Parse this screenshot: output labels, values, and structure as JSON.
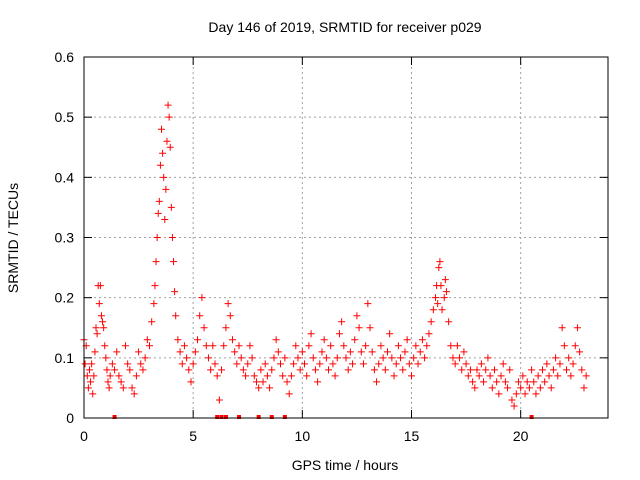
{
  "chart_data": {
    "type": "scatter",
    "title": "Day 146 of 2019, SRMTID for receiver p029",
    "xlabel": "GPS time / hours",
    "ylabel": "SRMTID / TECUs",
    "xlim": [
      0,
      24
    ],
    "ylim": [
      0,
      0.6
    ],
    "x_ticks": [
      0,
      5,
      10,
      15,
      20
    ],
    "x_tick_labels": [
      "0",
      "5",
      "10",
      "15",
      "20"
    ],
    "y_ticks": [
      0,
      0.1,
      0.2,
      0.3,
      0.4,
      0.5,
      0.6
    ],
    "y_tick_labels": [
      "0",
      "0.1",
      "0.2",
      "0.3",
      "0.4",
      "0.5",
      "0.6"
    ],
    "grid": true,
    "marker": "plus",
    "color": "#ff0000",
    "series": [
      {
        "name": "SRMTID",
        "points": [
          [
            0.0,
            0.13
          ],
          [
            0.05,
            0.09
          ],
          [
            0.1,
            0.12
          ],
          [
            0.15,
            0.07
          ],
          [
            0.2,
            0.05
          ],
          [
            0.25,
            0.08
          ],
          [
            0.3,
            0.06
          ],
          [
            0.35,
            0.09
          ],
          [
            0.4,
            0.04
          ],
          [
            0.45,
            0.07
          ],
          [
            0.5,
            0.11
          ],
          [
            0.55,
            0.15
          ],
          [
            0.6,
            0.14
          ],
          [
            0.65,
            0.22
          ],
          [
            0.7,
            0.19
          ],
          [
            0.75,
            0.22
          ],
          [
            0.8,
            0.17
          ],
          [
            0.85,
            0.16
          ],
          [
            0.9,
            0.15
          ],
          [
            0.95,
            0.12
          ],
          [
            1.0,
            0.1
          ],
          [
            1.05,
            0.08
          ],
          [
            1.1,
            0.06
          ],
          [
            1.15,
            0.05
          ],
          [
            1.2,
            0.07
          ],
          [
            1.3,
            0.09
          ],
          [
            1.4,
            0.08
          ],
          [
            1.5,
            0.11
          ],
          [
            1.6,
            0.07
          ],
          [
            1.7,
            0.06
          ],
          [
            1.8,
            0.05
          ],
          [
            1.9,
            0.12
          ],
          [
            2.0,
            0.09
          ],
          [
            2.1,
            0.08
          ],
          [
            2.2,
            0.05
          ],
          [
            2.3,
            0.04
          ],
          [
            2.4,
            0.07
          ],
          [
            2.5,
            0.11
          ],
          [
            2.6,
            0.09
          ],
          [
            2.7,
            0.08
          ],
          [
            2.8,
            0.1
          ],
          [
            2.9,
            0.13
          ],
          [
            3.0,
            0.12
          ],
          [
            3.1,
            0.16
          ],
          [
            3.2,
            0.19
          ],
          [
            3.25,
            0.22
          ],
          [
            3.3,
            0.26
          ],
          [
            3.35,
            0.3
          ],
          [
            3.4,
            0.34
          ],
          [
            3.45,
            0.36
          ],
          [
            3.5,
            0.42
          ],
          [
            3.55,
            0.48
          ],
          [
            3.6,
            0.44
          ],
          [
            3.65,
            0.4
          ],
          [
            3.7,
            0.33
          ],
          [
            3.75,
            0.38
          ],
          [
            3.8,
            0.46
          ],
          [
            3.85,
            0.52
          ],
          [
            3.9,
            0.5
          ],
          [
            3.95,
            0.45
          ],
          [
            4.0,
            0.35
          ],
          [
            4.05,
            0.3
          ],
          [
            4.1,
            0.26
          ],
          [
            4.15,
            0.21
          ],
          [
            4.2,
            0.17
          ],
          [
            4.3,
            0.13
          ],
          [
            4.4,
            0.11
          ],
          [
            4.5,
            0.09
          ],
          [
            4.6,
            0.12
          ],
          [
            4.7,
            0.1
          ],
          [
            4.8,
            0.08
          ],
          [
            4.9,
            0.06
          ],
          [
            5.0,
            0.09
          ],
          [
            5.1,
            0.11
          ],
          [
            5.2,
            0.13
          ],
          [
            5.3,
            0.17
          ],
          [
            5.4,
            0.2
          ],
          [
            5.5,
            0.15
          ],
          [
            5.6,
            0.12
          ],
          [
            5.7,
            0.1
          ],
          [
            5.8,
            0.08
          ],
          [
            5.9,
            0.12
          ],
          [
            6.0,
            0.09
          ],
          [
            6.1,
            0.07
          ],
          [
            6.2,
            0.03
          ],
          [
            6.3,
            0.08
          ],
          [
            6.4,
            0.12
          ],
          [
            6.5,
            0.15
          ],
          [
            6.6,
            0.19
          ],
          [
            6.7,
            0.17
          ],
          [
            6.8,
            0.13
          ],
          [
            6.9,
            0.11
          ],
          [
            7.0,
            0.09
          ],
          [
            7.1,
            0.12
          ],
          [
            7.2,
            0.1
          ],
          [
            7.3,
            0.08
          ],
          [
            7.4,
            0.07
          ],
          [
            7.5,
            0.09
          ],
          [
            7.6,
            0.12
          ],
          [
            7.7,
            0.1
          ],
          [
            7.8,
            0.07
          ],
          [
            7.9,
            0.06
          ],
          [
            8.0,
            0.05
          ],
          [
            8.1,
            0.08
          ],
          [
            8.2,
            0.06
          ],
          [
            8.3,
            0.09
          ],
          [
            8.4,
            0.07
          ],
          [
            8.5,
            0.05
          ],
          [
            8.6,
            0.08
          ],
          [
            8.7,
            0.1
          ],
          [
            8.8,
            0.13
          ],
          [
            8.9,
            0.11
          ],
          [
            9.0,
            0.09
          ],
          [
            9.1,
            0.07
          ],
          [
            9.2,
            0.1
          ],
          [
            9.3,
            0.06
          ],
          [
            9.4,
            0.04
          ],
          [
            9.5,
            0.07
          ],
          [
            9.6,
            0.09
          ],
          [
            9.7,
            0.12
          ],
          [
            9.8,
            0.1
          ],
          [
            9.9,
            0.08
          ],
          [
            10.0,
            0.11
          ],
          [
            10.1,
            0.09
          ],
          [
            10.2,
            0.07
          ],
          [
            10.3,
            0.12
          ],
          [
            10.4,
            0.14
          ],
          [
            10.5,
            0.1
          ],
          [
            10.6,
            0.08
          ],
          [
            10.7,
            0.06
          ],
          [
            10.8,
            0.09
          ],
          [
            10.9,
            0.11
          ],
          [
            11.0,
            0.13
          ],
          [
            11.1,
            0.1
          ],
          [
            11.2,
            0.08
          ],
          [
            11.3,
            0.12
          ],
          [
            11.4,
            0.09
          ],
          [
            11.5,
            0.07
          ],
          [
            11.6,
            0.1
          ],
          [
            11.7,
            0.14
          ],
          [
            11.8,
            0.16
          ],
          [
            11.9,
            0.12
          ],
          [
            12.0,
            0.1
          ],
          [
            12.1,
            0.08
          ],
          [
            12.2,
            0.11
          ],
          [
            12.3,
            0.09
          ],
          [
            12.4,
            0.13
          ],
          [
            12.5,
            0.17
          ],
          [
            12.6,
            0.15
          ],
          [
            12.7,
            0.11
          ],
          [
            12.8,
            0.09
          ],
          [
            12.9,
            0.12
          ],
          [
            13.0,
            0.19
          ],
          [
            13.1,
            0.15
          ],
          [
            13.2,
            0.11
          ],
          [
            13.3,
            0.08
          ],
          [
            13.4,
            0.06
          ],
          [
            13.5,
            0.09
          ],
          [
            13.6,
            0.12
          ],
          [
            13.7,
            0.1
          ],
          [
            13.8,
            0.08
          ],
          [
            13.9,
            0.11
          ],
          [
            14.0,
            0.14
          ],
          [
            14.1,
            0.1
          ],
          [
            14.2,
            0.07
          ],
          [
            14.3,
            0.09
          ],
          [
            14.4,
            0.12
          ],
          [
            14.5,
            0.1
          ],
          [
            14.6,
            0.08
          ],
          [
            14.7,
            0.11
          ],
          [
            14.8,
            0.13
          ],
          [
            14.9,
            0.09
          ],
          [
            15.0,
            0.07
          ],
          [
            15.1,
            0.1
          ],
          [
            15.2,
            0.12
          ],
          [
            15.3,
            0.09
          ],
          [
            15.4,
            0.11
          ],
          [
            15.5,
            0.13
          ],
          [
            15.6,
            0.1
          ],
          [
            15.7,
            0.12
          ],
          [
            15.8,
            0.14
          ],
          [
            15.9,
            0.16
          ],
          [
            16.0,
            0.18
          ],
          [
            16.1,
            0.2
          ],
          [
            16.15,
            0.22
          ],
          [
            16.2,
            0.19
          ],
          [
            16.25,
            0.25
          ],
          [
            16.3,
            0.26
          ],
          [
            16.35,
            0.22
          ],
          [
            16.4,
            0.18
          ],
          [
            16.5,
            0.2
          ],
          [
            16.55,
            0.23
          ],
          [
            16.6,
            0.21
          ],
          [
            16.7,
            0.16
          ],
          [
            16.8,
            0.12
          ],
          [
            16.9,
            0.1
          ],
          [
            17.0,
            0.09
          ],
          [
            17.1,
            0.12
          ],
          [
            17.2,
            0.1
          ],
          [
            17.3,
            0.08
          ],
          [
            17.4,
            0.11
          ],
          [
            17.5,
            0.09
          ],
          [
            17.6,
            0.07
          ],
          [
            17.7,
            0.08
          ],
          [
            17.8,
            0.06
          ],
          [
            17.9,
            0.05
          ],
          [
            18.0,
            0.08
          ],
          [
            18.1,
            0.07
          ],
          [
            18.2,
            0.09
          ],
          [
            18.3,
            0.06
          ],
          [
            18.4,
            0.08
          ],
          [
            18.5,
            0.1
          ],
          [
            18.6,
            0.07
          ],
          [
            18.7,
            0.05
          ],
          [
            18.8,
            0.08
          ],
          [
            18.9,
            0.06
          ],
          [
            19.0,
            0.04
          ],
          [
            19.1,
            0.07
          ],
          [
            19.2,
            0.09
          ],
          [
            19.3,
            0.06
          ],
          [
            19.4,
            0.05
          ],
          [
            19.5,
            0.08
          ],
          [
            19.6,
            0.03
          ],
          [
            19.7,
            0.02
          ],
          [
            19.8,
            0.04
          ],
          [
            19.9,
            0.06
          ],
          [
            20.0,
            0.05
          ],
          [
            20.1,
            0.07
          ],
          [
            20.2,
            0.04
          ],
          [
            20.3,
            0.06
          ],
          [
            20.4,
            0.05
          ],
          [
            20.5,
            0.08
          ],
          [
            20.6,
            0.06
          ],
          [
            20.7,
            0.04
          ],
          [
            20.8,
            0.07
          ],
          [
            20.9,
            0.05
          ],
          [
            21.0,
            0.08
          ],
          [
            21.1,
            0.06
          ],
          [
            21.2,
            0.09
          ],
          [
            21.3,
            0.07
          ],
          [
            21.4,
            0.05
          ],
          [
            21.5,
            0.08
          ],
          [
            21.6,
            0.1
          ],
          [
            21.7,
            0.07
          ],
          [
            21.8,
            0.09
          ],
          [
            21.9,
            0.15
          ],
          [
            22.0,
            0.12
          ],
          [
            22.1,
            0.08
          ],
          [
            22.2,
            0.1
          ],
          [
            22.3,
            0.07
          ],
          [
            22.4,
            0.09
          ],
          [
            22.5,
            0.12
          ],
          [
            22.6,
            0.15
          ],
          [
            22.7,
            0.11
          ],
          [
            22.8,
            0.08
          ],
          [
            22.9,
            0.05
          ],
          [
            23.0,
            0.07
          ]
        ]
      }
    ],
    "baseline_markers_x": [
      1.4,
      6.1,
      6.3,
      6.5,
      7.1,
      8.0,
      8.6,
      9.2,
      20.5
    ]
  }
}
